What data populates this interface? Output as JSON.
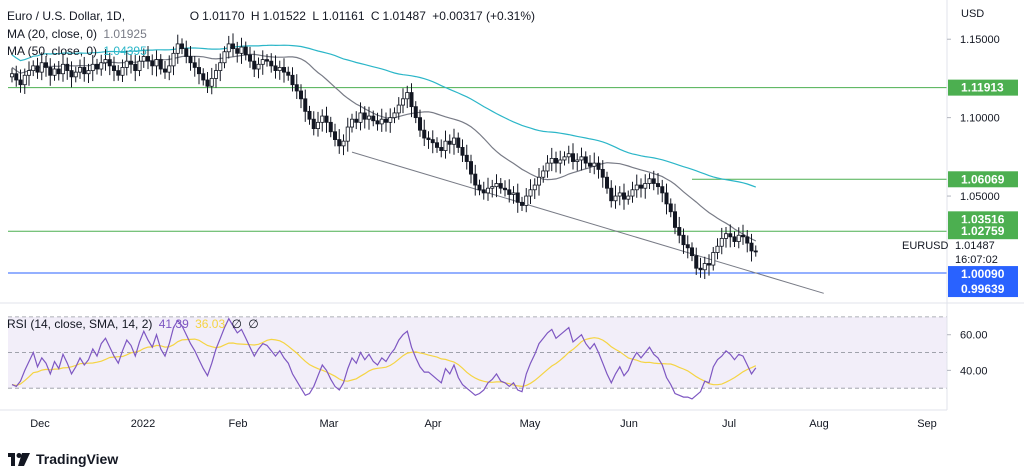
{
  "header": {
    "symbol": "Euro / U.S. Dollar, 1D,",
    "ohlc": [
      {
        "k": "O",
        "v": "1.01170"
      },
      {
        "k": "H",
        "v": "1.01522"
      },
      {
        "k": "L",
        "v": "1.01161"
      },
      {
        "k": "C",
        "v": "1.01487"
      }
    ],
    "change": "+0.00317 (+0.31%)"
  },
  "ma20": {
    "label": "MA (20, close, 0)",
    "value": "1.01925",
    "color": "#787b86"
  },
  "ma50": {
    "label": "MA (50, close, 0)",
    "value": "1.04395",
    "color": "#2bb6c8"
  },
  "rsi_legend": {
    "label": "RSI (14, close, SMA, 14, 2)",
    "value": "41.39",
    "sma": "36.03",
    "extra1": "∅",
    "extra2": "∅",
    "color": "#7e57c2",
    "sma_color": "#f5d443"
  },
  "currency": "USD",
  "symbol_tag": {
    "name": "EURUSD",
    "price": "1.01487",
    "countdown": "16:07:02"
  },
  "price_labels": [
    {
      "text": "1.11913",
      "value": 1.11913,
      "color": "#4caf50"
    },
    {
      "text": "1.06069",
      "value": 1.06069,
      "color": "#4caf50"
    },
    {
      "text": "1.03516",
      "value": 1.03516,
      "color": "#4caf50"
    },
    {
      "text": "1.02759",
      "value": 1.02759,
      "color": "#4caf50"
    },
    {
      "text": "1.00090",
      "value": 1.0009,
      "color": "#2962ff"
    },
    {
      "text": "0.99639",
      "value": 0.99639,
      "color": "#2962ff"
    }
  ],
  "brand": "TradingView",
  "chart_data": {
    "type": "candlestick",
    "price_axis": {
      "ticks": [
        1.15,
        1.1,
        1.05
      ],
      "tick_labels": [
        "1.15000",
        "1.10000",
        "1.05000"
      ],
      "range": [
        0.985,
        1.175
      ]
    },
    "rsi_axis": {
      "ticks": [
        60,
        40
      ],
      "tick_labels": [
        "60.00",
        "40.00"
      ],
      "range": [
        20,
        75
      ],
      "band": [
        30,
        70
      ]
    },
    "time_axis": {
      "labels": [
        "Dec",
        "2022",
        "Feb",
        "Mar",
        "Apr",
        "May",
        "Jun",
        "Jul",
        "Aug",
        "Sep"
      ]
    },
    "horizontal_levels": [
      1.11913,
      1.02759,
      1.0009
    ],
    "horizontal_levels_short": [
      1.06069
    ],
    "trendline": {
      "from": {
        "bar": 80,
        "price": 1.078
      },
      "to": {
        "bar": 191,
        "price": 0.988
      }
    },
    "closes": [
      1.128,
      1.124,
      1.121,
      1.127,
      1.13,
      1.133,
      1.129,
      1.135,
      1.132,
      1.127,
      1.131,
      1.128,
      1.134,
      1.13,
      1.126,
      1.129,
      1.132,
      1.128,
      1.13,
      1.134,
      1.131,
      1.135,
      1.137,
      1.133,
      1.13,
      1.127,
      1.132,
      1.136,
      1.134,
      1.13,
      1.136,
      1.139,
      1.136,
      1.133,
      1.137,
      1.131,
      1.129,
      1.133,
      1.141,
      1.147,
      1.144,
      1.139,
      1.135,
      1.132,
      1.128,
      1.124,
      1.12,
      1.125,
      1.13,
      1.135,
      1.142,
      1.147,
      1.144,
      1.141,
      1.145,
      1.14,
      1.136,
      1.131,
      1.134,
      1.137,
      1.136,
      1.133,
      1.13,
      1.132,
      1.129,
      1.127,
      1.121,
      1.117,
      1.112,
      1.104,
      1.099,
      1.093,
      1.097,
      1.101,
      1.097,
      1.091,
      1.086,
      1.082,
      1.085,
      1.094,
      1.099,
      1.097,
      1.103,
      1.099,
      1.101,
      1.098,
      1.096,
      1.099,
      1.097,
      1.1,
      1.103,
      1.108,
      1.112,
      1.116,
      1.107,
      1.1,
      1.092,
      1.087,
      1.086,
      1.084,
      1.081,
      1.079,
      1.085,
      1.083,
      1.087,
      1.081,
      1.076,
      1.072,
      1.064,
      1.057,
      1.054,
      1.052,
      1.055,
      1.056,
      1.058,
      1.055,
      1.054,
      1.051,
      1.052,
      1.046,
      1.044,
      1.05,
      1.054,
      1.057,
      1.062,
      1.066,
      1.071,
      1.074,
      1.071,
      1.073,
      1.075,
      1.077,
      1.072,
      1.073,
      1.075,
      1.071,
      1.069,
      1.071,
      1.067,
      1.062,
      1.055,
      1.047,
      1.05,
      1.052,
      1.048,
      1.05,
      1.054,
      1.057,
      1.055,
      1.058,
      1.061,
      1.058,
      1.056,
      1.052,
      1.045,
      1.04,
      1.03,
      1.025,
      1.019,
      1.017,
      1.012,
      1.004,
      1.003,
      1.007,
      1.006,
      1.014,
      1.018,
      1.023,
      1.026,
      1.024,
      1.021,
      1.025,
      1.024,
      1.02,
      1.015,
      1.01487
    ],
    "rsi": [
      32,
      31,
      34,
      40,
      45,
      50,
      42,
      47,
      44,
      38,
      45,
      41,
      49,
      44,
      38,
      42,
      47,
      43,
      46,
      52,
      48,
      55,
      58,
      53,
      48,
      44,
      51,
      57,
      54,
      48,
      56,
      62,
      57,
      53,
      60,
      52,
      48,
      55,
      64,
      68,
      65,
      60,
      55,
      51,
      46,
      41,
      37,
      44,
      52,
      58,
      64,
      69,
      65,
      61,
      63,
      58,
      53,
      48,
      52,
      55,
      54,
      51,
      48,
      51,
      47,
      44,
      38,
      34,
      30,
      26,
      27,
      31,
      37,
      43,
      40,
      35,
      31,
      29,
      33,
      41,
      47,
      44,
      50,
      46,
      49,
      45,
      43,
      47,
      45,
      49,
      52,
      57,
      60,
      62,
      53,
      47,
      42,
      39,
      39,
      37,
      35,
      33,
      41,
      38,
      43,
      36,
      32,
      30,
      28,
      26,
      27,
      29,
      33,
      35,
      38,
      34,
      33,
      31,
      33,
      29,
      28,
      38,
      44,
      49,
      55,
      58,
      61,
      63,
      58,
      60,
      62,
      64,
      56,
      58,
      60,
      55,
      52,
      55,
      50,
      44,
      38,
      33,
      38,
      42,
      37,
      40,
      46,
      50,
      47,
      50,
      53,
      49,
      47,
      43,
      36,
      32,
      27,
      26,
      25,
      25,
      24,
      26,
      28,
      34,
      33,
      42,
      46,
      48,
      51,
      49,
      46,
      49,
      48,
      43,
      38,
      41.39
    ]
  }
}
